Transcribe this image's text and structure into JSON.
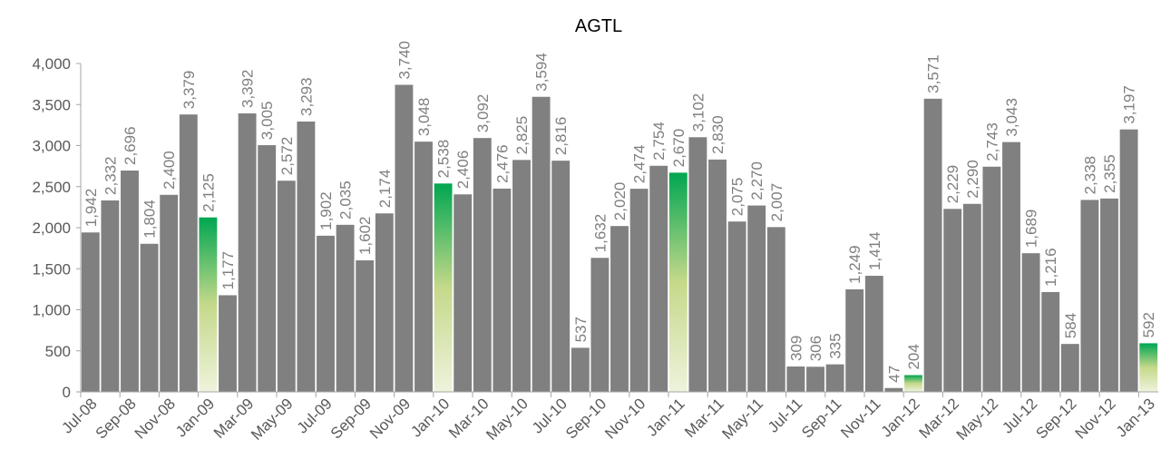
{
  "chart_data": {
    "type": "bar",
    "title": "AGTL",
    "xlabel": "",
    "ylabel": "",
    "ylim": [
      0,
      4000
    ],
    "yticks": [
      "0",
      "500",
      "1,000",
      "1,500",
      "2,000",
      "2,500",
      "3,000",
      "3,500",
      "4,000"
    ],
    "grid": false,
    "legend": "none",
    "colors": {
      "bar": "#808080",
      "highlight_top": "#00a651",
      "highlight_mid": "#c5d98a",
      "highlight_bottom": "#eef3dc"
    },
    "categories": [
      "Jul-08",
      "Aug-08",
      "Sep-08",
      "Oct-08",
      "Nov-08",
      "Dec-08",
      "Jan-09",
      "Feb-09",
      "Mar-09",
      "Apr-09",
      "May-09",
      "Jun-09",
      "Jul-09",
      "Aug-09",
      "Sep-09",
      "Oct-09",
      "Nov-09",
      "Dec-09",
      "Jan-10",
      "Feb-10",
      "Mar-10",
      "Apr-10",
      "May-10",
      "Jun-10",
      "Jul-10",
      "Aug-10",
      "Sep-10",
      "Oct-10",
      "Nov-10",
      "Dec-10",
      "Jan-11",
      "Feb-11",
      "Mar-11",
      "Apr-11",
      "May-11",
      "Jun-11",
      "Jul-11",
      "Aug-11",
      "Sep-11",
      "Oct-11",
      "Nov-11",
      "Dec-11",
      "Jan-12",
      "Feb-12",
      "Mar-12",
      "Apr-12",
      "May-12",
      "Jun-12",
      "Jul-12",
      "Aug-12",
      "Sep-12",
      "Oct-12",
      "Nov-12",
      "Dec-12",
      "Jan-13"
    ],
    "xtick_labels": [
      "Jul-08",
      "Sep-08",
      "Nov-08",
      "Jan-09",
      "Mar-09",
      "May-09",
      "Jul-09",
      "Sep-09",
      "Nov-09",
      "Jan-10",
      "Mar-10",
      "May-10",
      "Jul-10",
      "Sep-10",
      "Nov-10",
      "Jan-11",
      "Mar-11",
      "May-11",
      "Jul-11",
      "Sep-11",
      "Nov-11",
      "Jan-12",
      "Mar-12",
      "May-12",
      "Jul-12",
      "Sep-12",
      "Nov-12",
      "Jan-13"
    ],
    "values": [
      1942,
      2332,
      2696,
      1804,
      2400,
      3379,
      2125,
      1177,
      3392,
      3005,
      2572,
      3293,
      1902,
      2035,
      1602,
      2174,
      3740,
      3048,
      2538,
      2406,
      3092,
      2476,
      2825,
      3594,
      2816,
      537,
      1632,
      2020,
      2474,
      2754,
      2670,
      3102,
      2830,
      2075,
      2270,
      2007,
      309,
      306,
      335,
      1249,
      1414,
      47,
      204,
      3571,
      2229,
      2290,
      2743,
      3043,
      1689,
      1216,
      584,
      2338,
      2355,
      3197,
      592
    ],
    "data_labels": [
      "1,942",
      "2,332",
      "2,696",
      "1,804",
      "2,400",
      "3,379",
      "2,125",
      "1,177",
      "3,392",
      "3,005",
      "2,572",
      "3,293",
      "1,902",
      "2,035",
      "1,602",
      "2,174",
      "3,740",
      "3,048",
      "2,538",
      "2,406",
      "3,092",
      "2,476",
      "2,825",
      "3,594",
      "2,816",
      "537",
      "1,632",
      "2,020",
      "2,474",
      "2,754",
      "2,670",
      "3,102",
      "2,830",
      "2,075",
      "2,270",
      "2,007",
      "309",
      "306",
      "335",
      "1,249",
      "1,414",
      "47",
      "204",
      "3,571",
      "2,229",
      "2,290",
      "2,743",
      "3,043",
      "1,689",
      "1,216",
      "584",
      "2,338",
      "2,355",
      "3,197",
      "592"
    ],
    "highlighted_categories": [
      "Jan-09",
      "Jan-10",
      "Jan-11",
      "Jan-12",
      "Jan-13"
    ]
  }
}
